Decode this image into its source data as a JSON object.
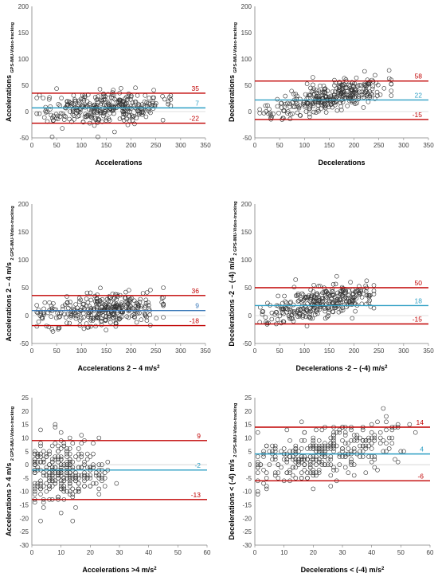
{
  "colors": {
    "upper": "#c00000",
    "mean": "#2e9fc4",
    "lower": "#c00000",
    "point": "#333333"
  },
  "chart_data": [
    {
      "type": "scatter",
      "xlabel": "Accelerations",
      "xlabel_sup": "",
      "ylabel": "Accelerations",
      "ylabel_sub": "GPS-IMU-Video-tracking",
      "xlim": [
        0,
        350
      ],
      "ylim": [
        -50,
        200
      ],
      "xticks": [
        0,
        50,
        100,
        150,
        200,
        250,
        300,
        350
      ],
      "yticks": [
        -50,
        0,
        50,
        100,
        150,
        200
      ],
      "mean": 7,
      "upper": 35,
      "lower": -22,
      "mean_label": "7",
      "upper_label": "35",
      "lower_label": "-22",
      "mean_color": "#2e9fc4",
      "cloud": {
        "n": 330,
        "xmin": 10,
        "xmax": 280,
        "center": 150,
        "spread": 55,
        "yBase": 0,
        "ySlope": 0.05,
        "yNoise": 16,
        "seed": 11
      }
    },
    {
      "type": "scatter",
      "xlabel": "Decelerations",
      "xlabel_sup": "",
      "ylabel": "Decelerations",
      "ylabel_sub": "GPS-IMU-Video-tracking",
      "xlim": [
        0,
        350
      ],
      "ylim": [
        -50,
        200
      ],
      "xticks": [
        0,
        50,
        100,
        150,
        200,
        250,
        300,
        350
      ],
      "yticks": [
        -50,
        0,
        50,
        100,
        150,
        200
      ],
      "mean": 22,
      "upper": 58,
      "lower": -15,
      "mean_label": "22",
      "upper_label": "58",
      "lower_label": "-15",
      "mean_color": "#2e9fc4",
      "cloud": {
        "n": 330,
        "xmin": 10,
        "xmax": 275,
        "center": 160,
        "spread": 55,
        "yBase": -2,
        "ySlope": 0.2,
        "yNoise": 14,
        "seed": 23
      }
    },
    {
      "type": "scatter",
      "xlabel": "Accelerations 2 – 4 m/s",
      "xlabel_sup": "2",
      "ylabel": "Accelerations 2 – 4 m/s",
      "ylabel_sub": "2 GPS-IMU-Video-tracking",
      "xlim": [
        0,
        350
      ],
      "ylim": [
        -50,
        200
      ],
      "xticks": [
        0,
        50,
        100,
        150,
        200,
        250,
        300,
        350
      ],
      "yticks": [
        -50,
        0,
        50,
        100,
        150,
        200
      ],
      "mean": 9,
      "upper": 36,
      "lower": -18,
      "mean_label": "9",
      "upper_label": "36",
      "lower_label": "-18",
      "mean_color": "#3a78b8",
      "cloud": {
        "n": 330,
        "xmin": 10,
        "xmax": 265,
        "center": 150,
        "spread": 50,
        "yBase": 0,
        "ySlope": 0.07,
        "yNoise": 14,
        "seed": 37
      }
    },
    {
      "type": "scatter",
      "xlabel": "Decelerations -2 – (-4) m/s",
      "xlabel_sup": "2",
      "ylabel": "Decelerations -2 – (-4) m/s",
      "ylabel_sub": "2 GPS-IMU-Video-tracking",
      "xlim": [
        0,
        350
      ],
      "ylim": [
        -50,
        200
      ],
      "xticks": [
        0,
        50,
        100,
        150,
        200,
        250,
        300,
        350
      ],
      "yticks": [
        -50,
        0,
        50,
        100,
        150,
        200
      ],
      "mean": 18,
      "upper": 50,
      "lower": -15,
      "mean_label": "18",
      "upper_label": "50",
      "lower_label": "-15",
      "mean_color": "#2e9fc4",
      "cloud": {
        "n": 320,
        "xmin": 10,
        "xmax": 240,
        "center": 140,
        "spread": 50,
        "yBase": 0,
        "ySlope": 0.17,
        "yNoise": 13,
        "seed": 53
      }
    },
    {
      "type": "scatter",
      "xlabel": "Accelerations >4 m/s",
      "xlabel_sup": "2",
      "ylabel": "Accelerations > 4 m/s",
      "ylabel_sub": "2 GPS-IMU-Video-tracking",
      "xlim": [
        0,
        60
      ],
      "ylim": [
        -30,
        25
      ],
      "xticks": [
        0,
        10,
        20,
        30,
        40,
        50,
        60
      ],
      "yticks": [
        -30,
        -25,
        -20,
        -15,
        -10,
        -5,
        0,
        5,
        10,
        15,
        20,
        25
      ],
      "mean": -2,
      "upper": 9,
      "lower": -13,
      "mean_label": "-2",
      "upper_label": "9",
      "lower_label": "-13",
      "mean_color": "#2e9fc4",
      "cloud": {
        "n": 300,
        "xmin": 1,
        "xmax": 29,
        "center": 10,
        "spread": 6,
        "yBase": -2,
        "ySlope": 0,
        "yNoise": 6,
        "seed": 71,
        "integer": true
      }
    },
    {
      "type": "scatter",
      "xlabel": "Decelerations < (-4) m/s",
      "xlabel_sup": "2",
      "ylabel": "Decelerations < (-4) m/s",
      "ylabel_sub": "2 GPS-IMU-Video-tracking",
      "xlim": [
        0,
        60
      ],
      "ylim": [
        -30,
        25
      ],
      "xticks": [
        0,
        10,
        20,
        30,
        40,
        50,
        60
      ],
      "yticks": [
        -30,
        -25,
        -20,
        -15,
        -10,
        -5,
        0,
        5,
        10,
        15,
        20,
        25
      ],
      "mean": 4,
      "upper": 14,
      "lower": -6,
      "mean_label": "4",
      "upper_label": "14",
      "lower_label": "-6",
      "mean_color": "#2e9fc4",
      "cloud": {
        "n": 320,
        "xmin": 1,
        "xmax": 55,
        "center": 22,
        "spread": 11,
        "yBase": 0,
        "ySlope": 0.2,
        "yNoise": 5,
        "seed": 89,
        "integer": true
      }
    }
  ]
}
